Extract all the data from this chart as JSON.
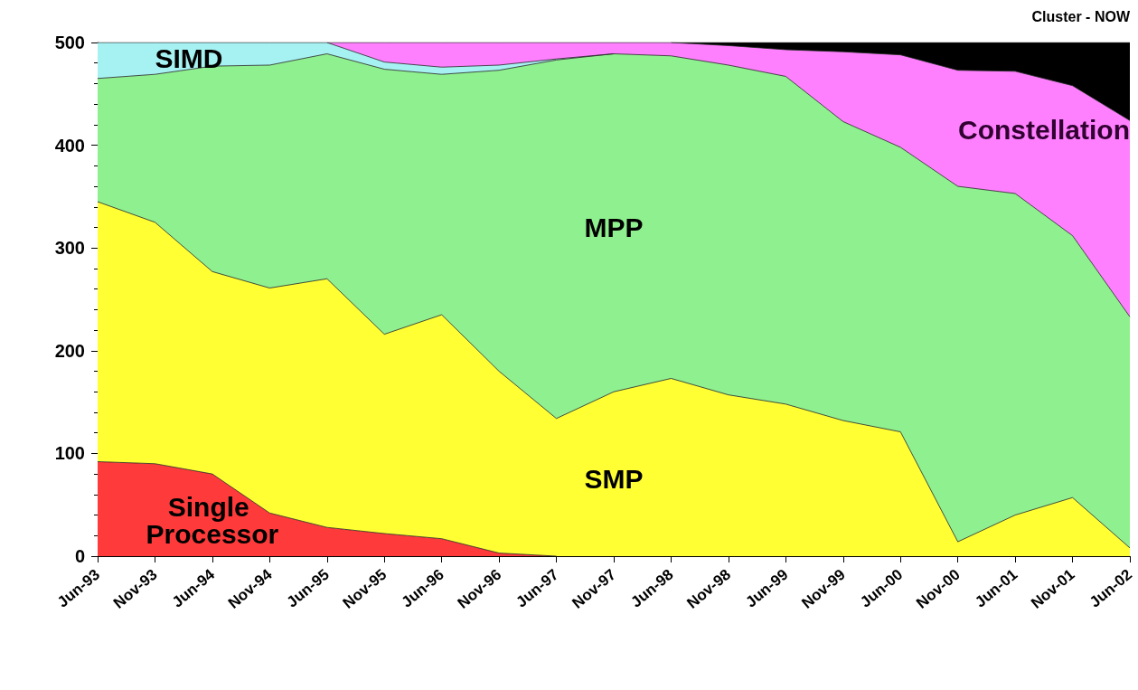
{
  "chart_data": {
    "type": "area",
    "stacked": true,
    "grid": false,
    "legend": false,
    "marker": "none",
    "categories": [
      "Jun-93",
      "Nov-93",
      "Jun-94",
      "Nov-94",
      "Jun-95",
      "Nov-95",
      "Jun-96",
      "Nov-96",
      "Jun-97",
      "Nov-97",
      "Jun-98",
      "Nov-98",
      "Jun-99",
      "Nov-99",
      "Jun-00",
      "Nov-00",
      "Jun-01",
      "Nov-01",
      "Jun-02"
    ],
    "ylim": [
      0,
      500
    ],
    "yticks": [
      0,
      100,
      200,
      300,
      400,
      500
    ],
    "series": [
      {
        "name": "Single Processor",
        "color": "#ff3a3a",
        "values": [
          92,
          90,
          80,
          42,
          28,
          22,
          17,
          3,
          0,
          null,
          null,
          null,
          null,
          null,
          null,
          null,
          null,
          null,
          null
        ]
      },
      {
        "name": "SMP",
        "color": "#ffff33",
        "values": [
          253,
          235,
          197,
          219,
          242,
          194,
          218,
          177,
          134,
          160,
          173,
          157,
          148,
          132,
          121,
          14,
          40,
          57,
          8
        ]
      },
      {
        "name": "MPP",
        "color": "#8ef08e",
        "values": [
          120,
          144,
          200,
          217,
          219,
          258,
          234,
          293,
          349,
          329,
          314,
          321,
          319,
          291,
          277,
          346,
          313,
          255,
          225
        ]
      },
      {
        "name": "SIMD",
        "color": "#a6f2f2",
        "values": [
          35,
          31,
          23,
          22,
          11,
          7,
          7,
          5,
          1,
          0,
          null,
          null,
          null,
          null,
          null,
          null,
          null,
          null,
          null
        ]
      },
      {
        "name": "Constellation",
        "color": "#ff80ff",
        "values": [
          null,
          null,
          null,
          null,
          0,
          19,
          24,
          22,
          16,
          11,
          13,
          19,
          26,
          68,
          90,
          113,
          119,
          146,
          191
        ]
      },
      {
        "name": "Cluster - NOW",
        "color": "#000000",
        "values": [
          null,
          null,
          null,
          null,
          null,
          null,
          null,
          null,
          null,
          null,
          0,
          3,
          7,
          9,
          12,
          27,
          28,
          42,
          76
        ]
      }
    ]
  }
}
